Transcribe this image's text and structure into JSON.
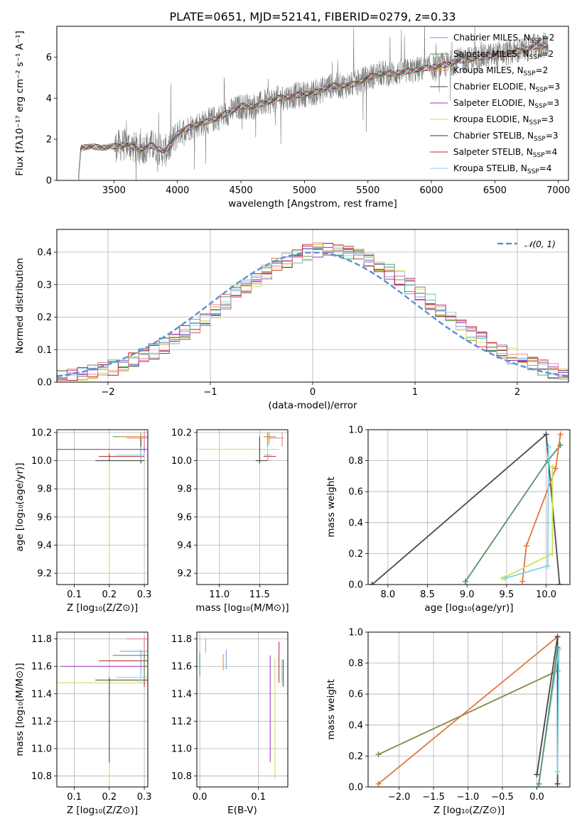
{
  "figure": {
    "title": "PLATE=0651, MJD=52141, FIBERID=0279, z=0.33"
  },
  "chart_data": [
    {
      "id": "spectrum",
      "type": "line",
      "xlabel": "wavelength [Angstrom, rest frame]",
      "ylabel": "Flux [fλ10⁻¹⁷ erg cm⁻² s⁻¹ A⁻¹]",
      "xlim": [
        3050,
        7080
      ],
      "ylim": [
        0,
        7.5
      ],
      "xticks": [
        3500,
        4000,
        4500,
        5000,
        5500,
        6000,
        6500,
        7000
      ],
      "yticks": [
        0,
        2,
        4,
        6
      ],
      "grid": false,
      "legend": "top-right",
      "data_x_range": [
        3220,
        6920
      ],
      "continuum": {
        "x": [
          3220,
          3240,
          3300,
          3400,
          3500,
          3600,
          3700,
          3800,
          3900,
          3950,
          4000,
          4100,
          4200,
          4300,
          4400,
          4500,
          4600,
          4700,
          4800,
          4900,
          5000,
          5100,
          5200,
          5300,
          5400,
          5500,
          5600,
          5700,
          5800,
          5900,
          6000,
          6100,
          6200,
          6300,
          6400,
          6500,
          6600,
          6700,
          6800,
          6920
        ],
        "y": [
          0.0,
          1.6,
          1.65,
          1.6,
          1.65,
          1.75,
          1.5,
          1.7,
          1.4,
          1.75,
          2.3,
          2.6,
          2.8,
          3.0,
          3.3,
          3.6,
          3.6,
          3.8,
          4.0,
          4.1,
          4.2,
          4.3,
          4.6,
          4.6,
          4.7,
          5.0,
          5.2,
          5.2,
          5.3,
          5.4,
          5.5,
          5.6,
          5.8,
          5.9,
          6.0,
          6.1,
          6.2,
          6.3,
          6.5,
          6.6
        ]
      },
      "legend_entries": [
        {
          "label": "Chabrier MILES, N",
          "sub": "SSP",
          "val": "=2",
          "color": "#6f95e0"
        },
        {
          "label": "Salpeter MILES, N",
          "sub": "SSP",
          "val": "=2",
          "color": "#3c9a3c"
        },
        {
          "label": "Kroupa MILES, N",
          "sub": "SSP",
          "val": "=2",
          "color": "#e68a32"
        },
        {
          "label": "Chabrier ELODIE, N",
          "sub": "SSP",
          "val": "=3",
          "color": "#444444"
        },
        {
          "label": "Salpeter ELODIE, N",
          "sub": "SSP",
          "val": "=3",
          "color": "#9b30c0"
        },
        {
          "label": "Kroupa ELODIE, N",
          "sub": "SSP",
          "val": "=3",
          "color": "#cde05a"
        },
        {
          "label": "Chabrier STELIB, N",
          "sub": "SSP",
          "val": "=3",
          "color": "#333333"
        },
        {
          "label": "Salpeter STELIB, N",
          "sub": "SSP",
          "val": "=4",
          "color": "#c0202a"
        },
        {
          "label": "Kroupa STELIB, N",
          "sub": "SSP",
          "val": "=4",
          "color": "#7fd4e6"
        }
      ]
    },
    {
      "id": "residuals",
      "type": "line",
      "xlabel": "(data-model)/error",
      "ylabel": "Normed distribution",
      "xlim": [
        -2.5,
        2.5
      ],
      "ylim": [
        0,
        0.47
      ],
      "xticks": [
        -2,
        -1,
        0,
        1,
        2
      ],
      "yticks": [
        0.0,
        0.1,
        0.2,
        0.3,
        0.4
      ],
      "grid": true,
      "legend": "top-right",
      "legend_label": "𝒩(0, 1)",
      "gaussian": {
        "mu": 0,
        "sigma": 1,
        "color": "#5b8fd6"
      },
      "hist_colors": [
        "#6f95e0",
        "#3c9a3c",
        "#e68a32",
        "#444444",
        "#9b30c0",
        "#cde05a",
        "#c0202a",
        "#7fd4e6",
        "#e67e8a"
      ]
    },
    {
      "id": "age_vs_Z",
      "type": "line",
      "xlabel": "Z [log₁₀(Z/Z⊙)]",
      "ylabel": "age  [log₁₀(age/yr)]",
      "xlim": [
        0.05,
        0.31
      ],
      "ylim": [
        9.12,
        10.22
      ],
      "xticks": [
        0.1,
        0.2,
        0.3
      ],
      "yticks": [
        9.2,
        9.4,
        9.6,
        9.8,
        10.0,
        10.2
      ],
      "grid": true
    },
    {
      "id": "age_vs_mass",
      "type": "line",
      "xlabel": "mass [log₁₀(M/M⊙)]",
      "ylabel": "",
      "xlim": [
        10.72,
        11.85
      ],
      "ylim": [
        9.12,
        10.22
      ],
      "xticks": [
        11.0,
        11.5
      ],
      "yticks": [
        9.2,
        9.4,
        9.6,
        9.8,
        10.0,
        10.2
      ],
      "grid": true
    },
    {
      "id": "weight_vs_age",
      "type": "line",
      "xlabel": "age  [log₁₀(age/yr)]",
      "ylabel": "mass weight",
      "xlim": [
        7.75,
        10.3
      ],
      "ylim": [
        0,
        1.0
      ],
      "xticks": [
        8.0,
        8.5,
        9.0,
        9.5,
        10.0
      ],
      "yticks": [
        0.0,
        0.2,
        0.4,
        0.6,
        0.8,
        1.0
      ],
      "grid": true,
      "series": [
        {
          "color": "#4a4a4a",
          "x": [
            7.8,
            10.0,
            10.17
          ],
          "y": [
            0.0,
            0.97,
            0.0
          ]
        },
        {
          "color": "#5a9068",
          "x": [
            8.98,
            10.02,
            10.18
          ],
          "y": [
            0.02,
            0.8,
            0.9
          ]
        },
        {
          "color": "#e0773c",
          "x": [
            9.7,
            9.75,
            10.12,
            10.18
          ],
          "y": [
            0.02,
            0.25,
            0.75,
            0.97
          ]
        },
        {
          "color": "#cde05a",
          "x": [
            9.45,
            10.08,
            10.08
          ],
          "y": [
            0.04,
            0.2,
            0.76
          ]
        },
        {
          "color": "#7fd4e6",
          "x": [
            9.48,
            10.02,
            10.03
          ],
          "y": [
            0.04,
            0.12,
            0.89
          ]
        }
      ]
    },
    {
      "id": "mass_vs_Z",
      "type": "line",
      "xlabel": "Z [log₁₀(Z/Z⊙)]",
      "ylabel": "mass [log₁₀(M/M⊙)]",
      "xlim": [
        0.05,
        0.31
      ],
      "ylim": [
        10.72,
        11.85
      ],
      "xticks": [
        0.1,
        0.2,
        0.3
      ],
      "yticks": [
        10.8,
        11.0,
        11.2,
        11.4,
        11.6,
        11.8
      ],
      "grid": true
    },
    {
      "id": "mass_vs_EBV",
      "type": "line",
      "xlabel": "E(B-V)",
      "ylabel": "",
      "xlim": [
        -0.005,
        0.15
      ],
      "ylim": [
        10.72,
        11.85
      ],
      "xticks": [
        0.0,
        0.1
      ],
      "yticks": [
        10.8,
        11.0,
        11.2,
        11.4,
        11.6,
        11.8
      ],
      "grid": true
    },
    {
      "id": "weight_vs_Z",
      "type": "line",
      "xlabel": "Z [log₁₀(Z/Z⊙)]",
      "ylabel": "mass weight",
      "xlim": [
        -2.45,
        0.48
      ],
      "ylim": [
        0,
        1.0
      ],
      "xticks": [
        -2.0,
        -1.5,
        -1.0,
        -0.5,
        0.0
      ],
      "yticks": [
        0.0,
        0.2,
        0.4,
        0.6,
        0.8,
        1.0
      ],
      "grid": true,
      "series": [
        {
          "color": "#e0773c",
          "x": [
            -2.3,
            0.3
          ],
          "y": [
            0.02,
            0.97
          ]
        },
        {
          "color": "#cde05a",
          "x": [
            -2.3,
            0.3
          ],
          "y": [
            0.21,
            0.75
          ]
        },
        {
          "color": "#8a8a50",
          "x": [
            -2.3,
            0.3
          ],
          "y": [
            0.21,
            0.75
          ]
        },
        {
          "color": "#444444",
          "x": [
            0.0,
            0.3,
            0.3
          ],
          "y": [
            0.08,
            0.97,
            0.02
          ]
        },
        {
          "color": "#7fd4e6",
          "x": [
            0.02,
            0.32,
            0.3
          ],
          "y": [
            0.0,
            0.89,
            0.1
          ]
        },
        {
          "color": "#5a9068",
          "x": [
            0.03,
            0.3
          ],
          "y": [
            0.02,
            0.9
          ]
        }
      ]
    }
  ]
}
